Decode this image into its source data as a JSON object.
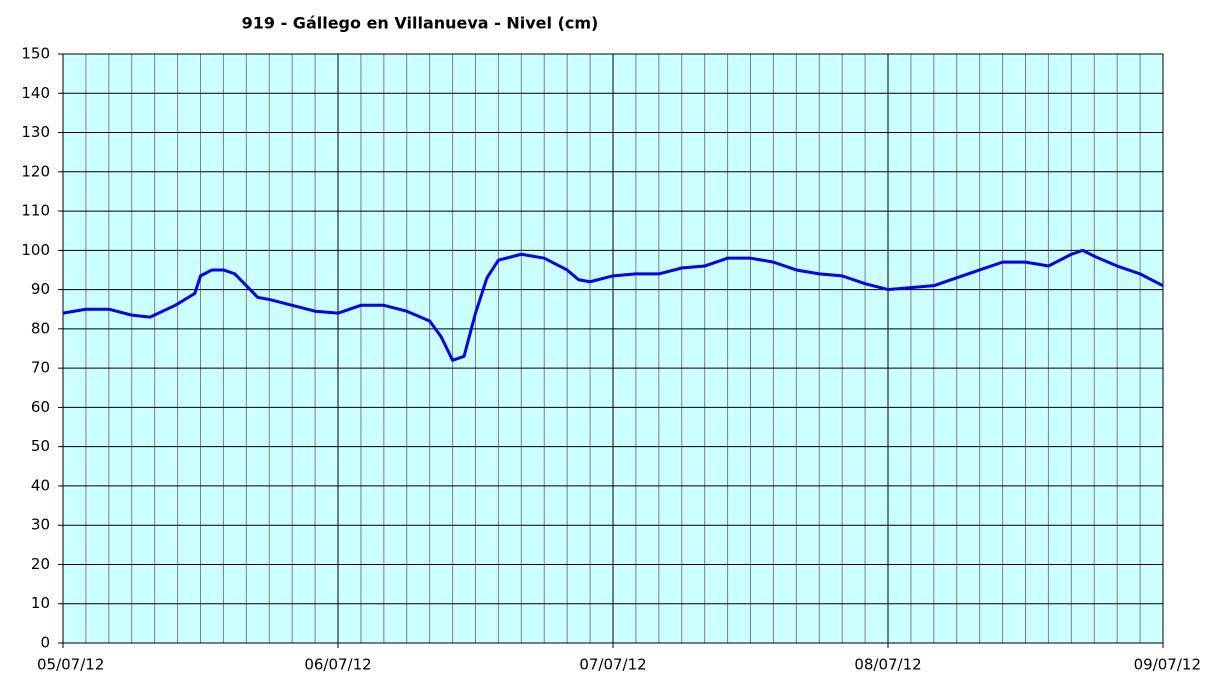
{
  "chart_data": {
    "type": "line",
    "title": "919 - Gállego en Villanueva - Nivel (cm)",
    "x": [
      0,
      2,
      4,
      6,
      7.6,
      9.8,
      11.5,
      12,
      13,
      14,
      15,
      16,
      17,
      18,
      20,
      22,
      24,
      26,
      28,
      30,
      32,
      33,
      34,
      35,
      36,
      37,
      38,
      40,
      42,
      44,
      45,
      46,
      48,
      50,
      52,
      54,
      56,
      58,
      60,
      62,
      64,
      66,
      68,
      70,
      72,
      74,
      76,
      78,
      80,
      82,
      84,
      86,
      88,
      89,
      90,
      92,
      94,
      96
    ],
    "series": [
      {
        "name": "Nivel",
        "color": "#0000ff",
        "values": [
          84,
          85,
          85,
          83.5,
          83,
          86,
          89,
          93.5,
          95,
          95,
          94,
          91,
          88,
          87.5,
          86,
          84.5,
          84,
          86,
          86,
          84.5,
          82,
          78,
          72,
          73,
          84,
          93,
          97.5,
          99,
          98,
          95,
          92.5,
          92,
          93.5,
          94,
          94,
          95.5,
          96,
          98,
          98,
          97,
          95,
          94,
          93.5,
          91.5,
          90,
          90.5,
          91,
          93,
          95,
          97,
          97,
          96,
          99,
          100,
          98.5,
          96,
          94,
          91
        ]
      }
    ],
    "xlim": [
      0,
      96
    ],
    "xticks": [
      {
        "value": 0,
        "label": "05/07/12"
      },
      {
        "value": 24,
        "label": "06/07/12"
      },
      {
        "value": 48,
        "label": "07/07/12"
      },
      {
        "value": 72,
        "label": "08/07/12"
      },
      {
        "value": 96,
        "label": "09/07/12"
      }
    ],
    "xminorticks": [
      2,
      4,
      6,
      8,
      10,
      12,
      14,
      16,
      18,
      20,
      22,
      26,
      28,
      30,
      32,
      34,
      36,
      38,
      40,
      42,
      44,
      46,
      50,
      52,
      54,
      56,
      58,
      60,
      62,
      64,
      66,
      68,
      70,
      74,
      76,
      78,
      80,
      82,
      84,
      86,
      88,
      90,
      92,
      94
    ],
    "ylim": [
      0,
      150
    ],
    "yticks": [
      0,
      10,
      20,
      30,
      40,
      50,
      60,
      70,
      80,
      90,
      100,
      110,
      120,
      130,
      140,
      150
    ],
    "grid": true,
    "background": "#ccffff"
  }
}
